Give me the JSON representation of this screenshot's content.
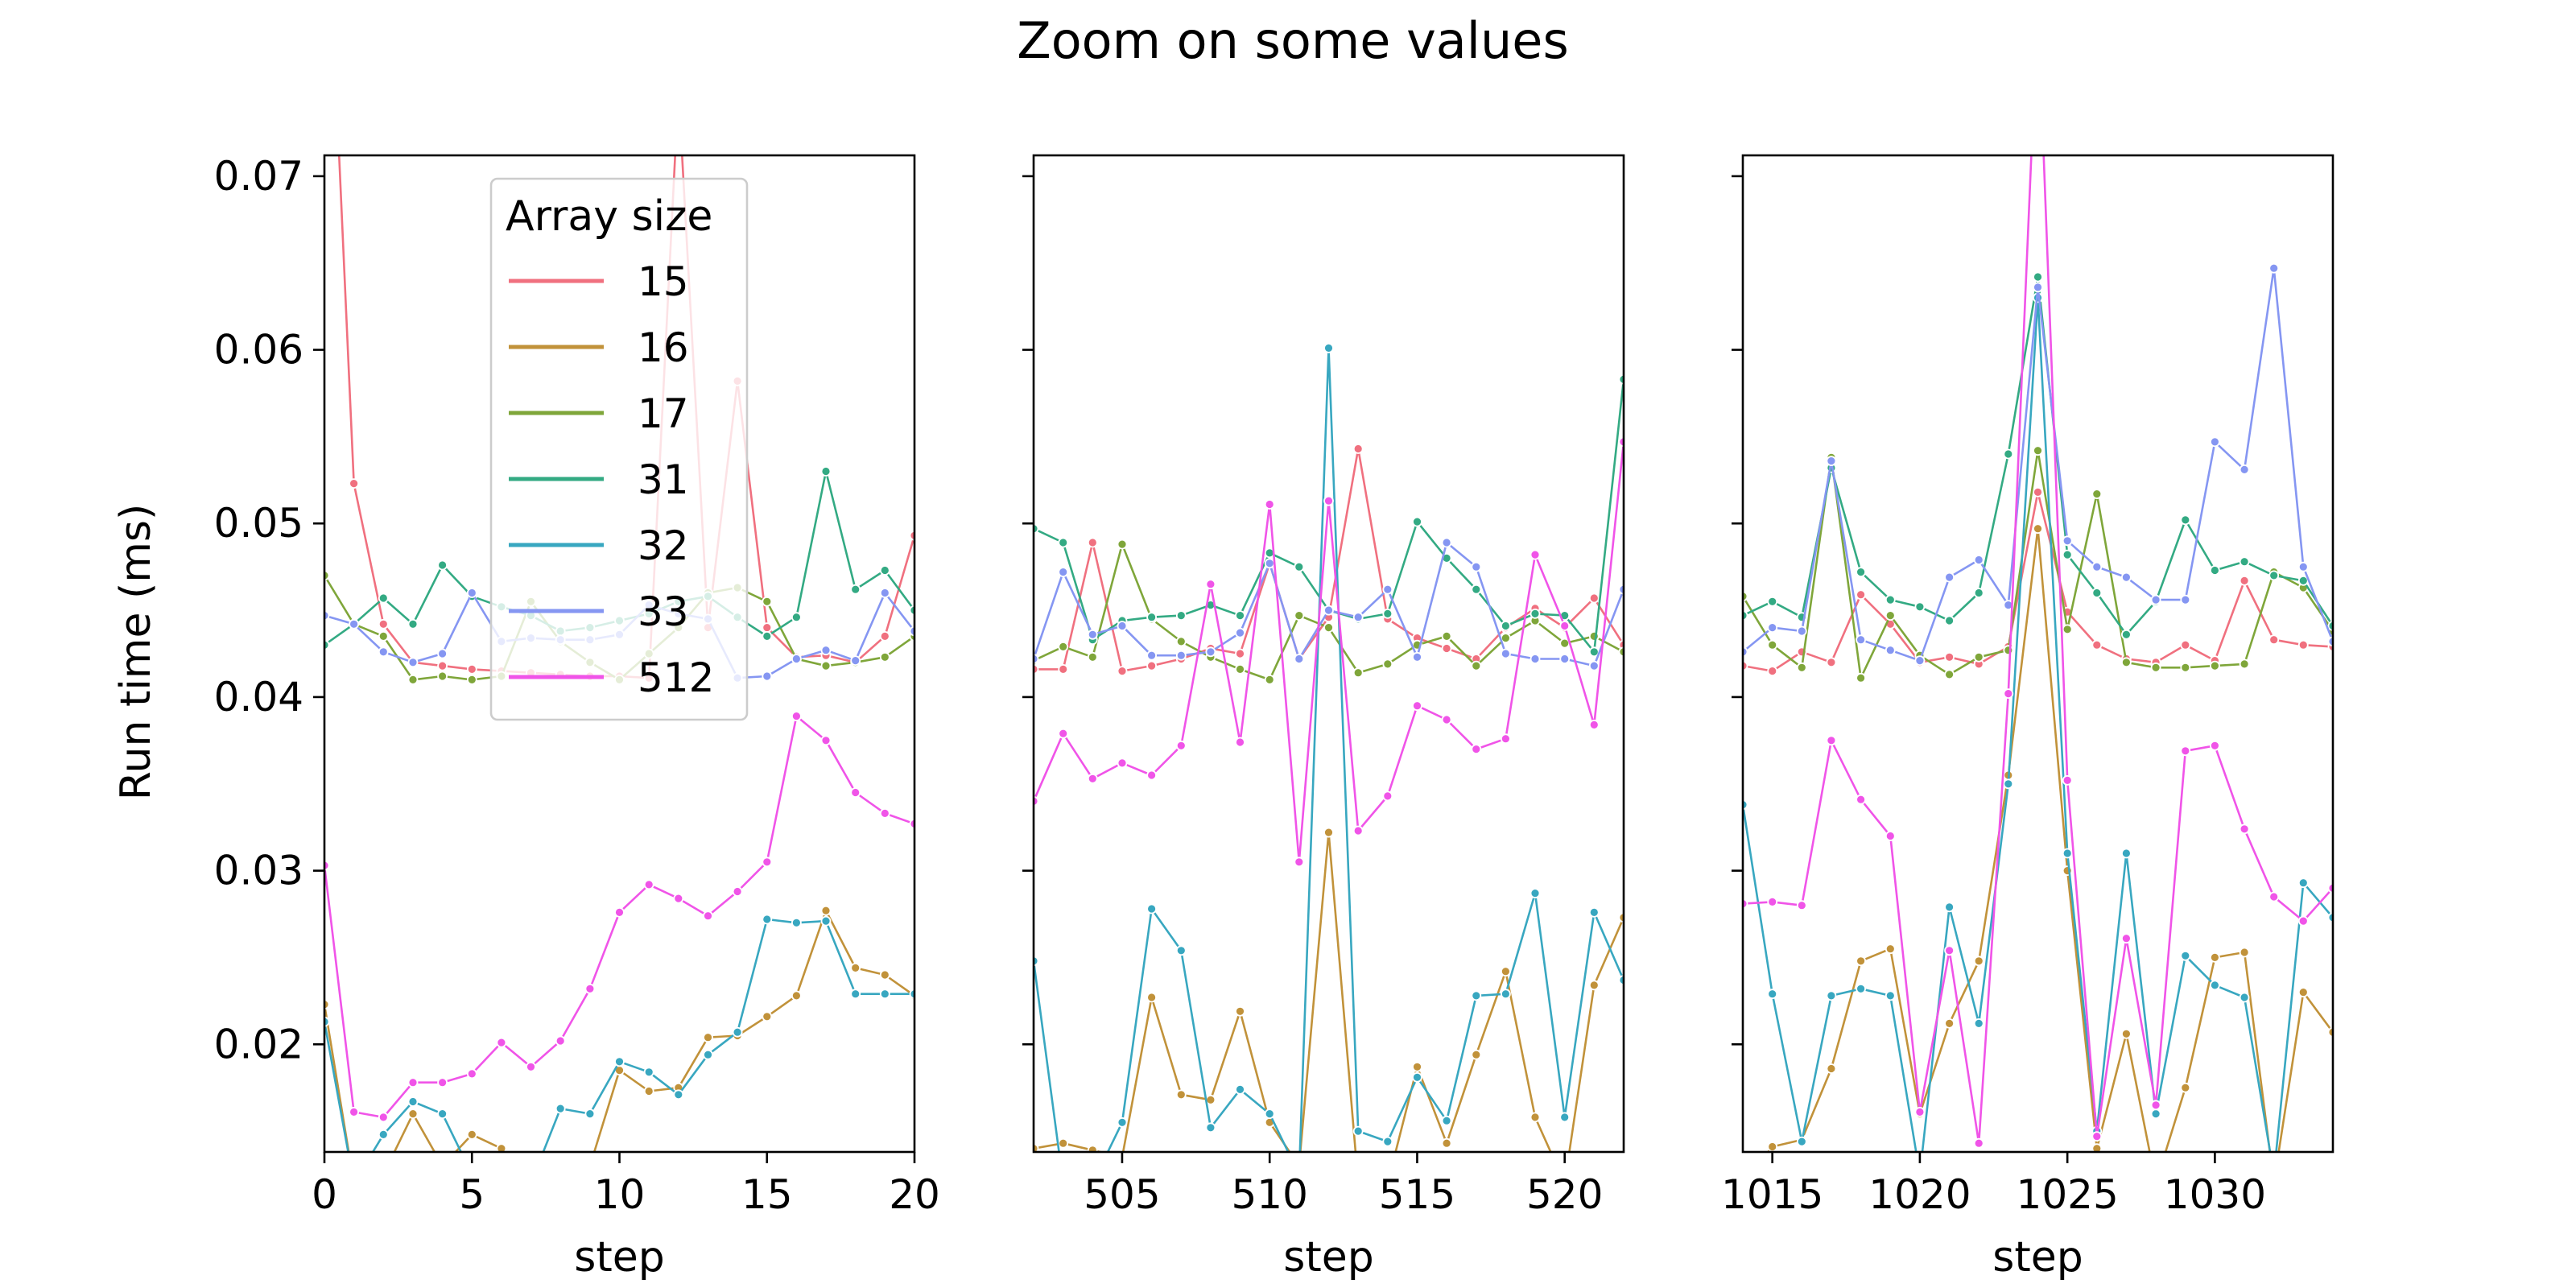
{
  "title": "Zoom on some values",
  "legend": {
    "title": "Array size",
    "placement": "upper-center of first panel"
  },
  "colors": {
    "15": "#f0707f",
    "16": "#c1923a",
    "17": "#7fa63a",
    "31": "#33aa83",
    "32": "#38a7c0",
    "33": "#8596f2",
    "512": "#f054e8"
  },
  "chart_data": [
    {
      "type": "line",
      "panel": 1,
      "xlabel": "step",
      "ylabel": "Run time (ms)",
      "xlim": [
        0,
        20
      ],
      "ylim": [
        0.0138,
        0.0712
      ],
      "xticks": [
        0,
        5,
        10,
        15,
        20
      ],
      "yticks": [
        0.02,
        0.03,
        0.04,
        0.05,
        0.06,
        0.07
      ],
      "ytick_labels": [
        "0.02",
        "0.03",
        "0.04",
        "0.05",
        "0.06",
        "0.07"
      ],
      "x": [
        0,
        1,
        2,
        3,
        4,
        5,
        6,
        7,
        8,
        9,
        10,
        11,
        12,
        13,
        14,
        15,
        16,
        17,
        18,
        19,
        20
      ],
      "series": [
        {
          "name": "15",
          "values": [
            0.09,
            0.0523,
            0.0442,
            0.042,
            0.0418,
            0.0416,
            0.0415,
            0.0414,
            0.0413,
            0.0412,
            0.0412,
            0.0411,
            0.075,
            0.044,
            0.0582,
            0.044,
            0.0423,
            0.0424,
            0.042,
            0.0435,
            0.0493
          ]
        },
        {
          "name": "16",
          "values": [
            0.0223,
            0.012,
            0.0125,
            0.016,
            0.013,
            0.0148,
            0.014,
            0.0125,
            0.012,
            0.013,
            0.0185,
            0.0173,
            0.0175,
            0.0204,
            0.0205,
            0.0216,
            0.0228,
            0.0277,
            0.0244,
            0.024,
            0.0228
          ]
        },
        {
          "name": "17",
          "values": [
            0.047,
            0.0442,
            0.0435,
            0.041,
            0.0412,
            0.041,
            0.0412,
            0.0455,
            0.0432,
            0.042,
            0.041,
            0.0425,
            0.044,
            0.046,
            0.0463,
            0.0455,
            0.0422,
            0.0418,
            0.042,
            0.0423,
            0.0435
          ]
        },
        {
          "name": "31",
          "values": [
            0.043,
            0.0442,
            0.0457,
            0.0442,
            0.0476,
            0.0458,
            0.0452,
            0.0447,
            0.0438,
            0.044,
            0.0444,
            0.0448,
            0.0455,
            0.0458,
            0.0446,
            0.0435,
            0.0446,
            0.053,
            0.0462,
            0.0473,
            0.045
          ]
        },
        {
          "name": "32",
          "values": [
            0.0213,
            0.012,
            0.0148,
            0.0167,
            0.016,
            0.0125,
            0.013,
            0.012,
            0.0163,
            0.016,
            0.019,
            0.0184,
            0.0171,
            0.0194,
            0.0207,
            0.0272,
            0.027,
            0.0271,
            0.0229,
            0.0229,
            0.0229
          ]
        },
        {
          "name": "33",
          "values": [
            0.0447,
            0.0442,
            0.0426,
            0.042,
            0.0425,
            0.046,
            0.0432,
            0.0434,
            0.0433,
            0.0433,
            0.0436,
            0.0453,
            0.0448,
            0.0445,
            0.0411,
            0.0412,
            0.0422,
            0.0427,
            0.0421,
            0.046,
            0.0438
          ]
        },
        {
          "name": "512",
          "values": [
            0.0303,
            0.0161,
            0.0158,
            0.0178,
            0.0178,
            0.0183,
            0.0201,
            0.0187,
            0.0202,
            0.0232,
            0.0276,
            0.0292,
            0.0284,
            0.0274,
            0.0288,
            0.0305,
            0.0389,
            0.0375,
            0.0345,
            0.0333,
            0.0327
          ]
        }
      ]
    },
    {
      "type": "line",
      "panel": 2,
      "xlabel": "step",
      "ylabel": "",
      "xlim": [
        502,
        522
      ],
      "ylim": [
        0.0138,
        0.0712
      ],
      "xticks": [
        505,
        510,
        515,
        520
      ],
      "yticks": [
        0.02,
        0.03,
        0.04,
        0.05,
        0.06,
        0.07
      ],
      "x": [
        502,
        503,
        504,
        505,
        506,
        507,
        508,
        509,
        510,
        511,
        512,
        513,
        514,
        515,
        516,
        517,
        518,
        519,
        520,
        521,
        522
      ],
      "series": [
        {
          "name": "15",
          "values": [
            0.0416,
            0.0416,
            0.0489,
            0.0415,
            0.0418,
            0.0422,
            0.0428,
            0.0425,
            0.0477,
            0.0422,
            0.0446,
            0.0543,
            0.0445,
            0.0434,
            0.0428,
            0.0422,
            0.044,
            0.0451,
            0.044,
            0.0457,
            0.043
          ]
        },
        {
          "name": "16",
          "values": [
            0.014,
            0.0143,
            0.0139,
            0.0135,
            0.0227,
            0.0171,
            0.0168,
            0.0219,
            0.0155,
            0.013,
            0.0322,
            0.012,
            0.012,
            0.0187,
            0.0143,
            0.0194,
            0.0242,
            0.0158,
            0.012,
            0.0234,
            0.0273
          ]
        },
        {
          "name": "17",
          "values": [
            0.0421,
            0.0429,
            0.0423,
            0.0488,
            0.0445,
            0.0432,
            0.0423,
            0.0416,
            0.041,
            0.0447,
            0.044,
            0.0414,
            0.0419,
            0.043,
            0.0435,
            0.0418,
            0.0434,
            0.0444,
            0.0431,
            0.0435,
            0.0426
          ]
        },
        {
          "name": "31",
          "values": [
            0.0497,
            0.0489,
            0.0433,
            0.0444,
            0.0446,
            0.0447,
            0.0453,
            0.0447,
            0.0483,
            0.0475,
            0.045,
            0.0445,
            0.0448,
            0.0501,
            0.048,
            0.0462,
            0.0441,
            0.0448,
            0.0447,
            0.0426,
            0.0583
          ]
        },
        {
          "name": "32",
          "values": [
            0.0248,
            0.012,
            0.012,
            0.0155,
            0.0278,
            0.0254,
            0.0152,
            0.0174,
            0.016,
            0.0125,
            0.0601,
            0.015,
            0.0144,
            0.0181,
            0.0156,
            0.0228,
            0.0229,
            0.0287,
            0.0158,
            0.0276,
            0.0237
          ]
        },
        {
          "name": "33",
          "values": [
            0.0422,
            0.0472,
            0.0436,
            0.0441,
            0.0424,
            0.0424,
            0.0426,
            0.0437,
            0.0477,
            0.0422,
            0.045,
            0.0446,
            0.0462,
            0.0423,
            0.0489,
            0.0475,
            0.0425,
            0.0422,
            0.0422,
            0.0418,
            0.0462
          ]
        },
        {
          "name": "512",
          "values": [
            0.034,
            0.0379,
            0.0353,
            0.0362,
            0.0355,
            0.0372,
            0.0465,
            0.0374,
            0.0511,
            0.0305,
            0.0513,
            0.0323,
            0.0343,
            0.0395,
            0.0387,
            0.037,
            0.0376,
            0.0482,
            0.0441,
            0.0384,
            0.0547
          ]
        }
      ]
    },
    {
      "type": "line",
      "panel": 3,
      "xlabel": "step",
      "ylabel": "",
      "xlim": [
        1014,
        1034
      ],
      "ylim": [
        0.0138,
        0.0712
      ],
      "xticks": [
        1015,
        1020,
        1025,
        1030
      ],
      "yticks": [
        0.02,
        0.03,
        0.04,
        0.05,
        0.06,
        0.07
      ],
      "x": [
        1014,
        1015,
        1016,
        1017,
        1018,
        1019,
        1020,
        1021,
        1022,
        1023,
        1024,
        1025,
        1026,
        1027,
        1028,
        1029,
        1030,
        1031,
        1032,
        1033,
        1034
      ],
      "series": [
        {
          "name": "15",
          "values": [
            0.0418,
            0.0415,
            0.0426,
            0.042,
            0.0459,
            0.0442,
            0.042,
            0.0423,
            0.0419,
            0.0429,
            0.0518,
            0.0449,
            0.043,
            0.0422,
            0.042,
            0.043,
            0.0421,
            0.0467,
            0.0433,
            0.043,
            0.0429
          ]
        },
        {
          "name": "16",
          "values": [
            0.012,
            0.0141,
            0.0145,
            0.0186,
            0.0248,
            0.0255,
            0.016,
            0.0212,
            0.0248,
            0.0355,
            0.0497,
            0.03,
            0.014,
            0.0206,
            0.012,
            0.0175,
            0.025,
            0.0253,
            0.012,
            0.023,
            0.0207
          ]
        },
        {
          "name": "17",
          "values": [
            0.0458,
            0.043,
            0.0417,
            0.0538,
            0.0411,
            0.0447,
            0.0424,
            0.0413,
            0.0423,
            0.0427,
            0.0542,
            0.0439,
            0.0517,
            0.042,
            0.0417,
            0.0417,
            0.0418,
            0.0419,
            0.0472,
            0.0463,
            0.0438
          ]
        },
        {
          "name": "31",
          "values": [
            0.0447,
            0.0455,
            0.0446,
            0.0532,
            0.0472,
            0.0456,
            0.0452,
            0.0444,
            0.046,
            0.054,
            0.0642,
            0.0482,
            0.046,
            0.0436,
            0.0455,
            0.0502,
            0.0473,
            0.0478,
            0.047,
            0.0467,
            0.0441
          ]
        },
        {
          "name": "32",
          "values": [
            0.0338,
            0.0229,
            0.0144,
            0.0228,
            0.0232,
            0.0228,
            0.0125,
            0.0279,
            0.0212,
            0.035,
            0.063,
            0.031,
            0.015,
            0.031,
            0.016,
            0.0251,
            0.0234,
            0.0227,
            0.0125,
            0.0293,
            0.0273
          ]
        },
        {
          "name": "33",
          "values": [
            0.0426,
            0.044,
            0.0438,
            0.0536,
            0.0433,
            0.0427,
            0.0421,
            0.0469,
            0.0479,
            0.0453,
            0.0636,
            0.049,
            0.0475,
            0.0469,
            0.0456,
            0.0456,
            0.0547,
            0.0531,
            0.0647,
            0.0475,
            0.0432
          ]
        },
        {
          "name": "512",
          "values": [
            0.0281,
            0.0282,
            0.028,
            0.0375,
            0.0341,
            0.032,
            0.0161,
            0.0254,
            0.0143,
            0.0402,
            0.08,
            0.0352,
            0.0147,
            0.0261,
            0.0165,
            0.0369,
            0.0372,
            0.0324,
            0.0285,
            0.0271,
            0.029
          ]
        }
      ]
    }
  ]
}
